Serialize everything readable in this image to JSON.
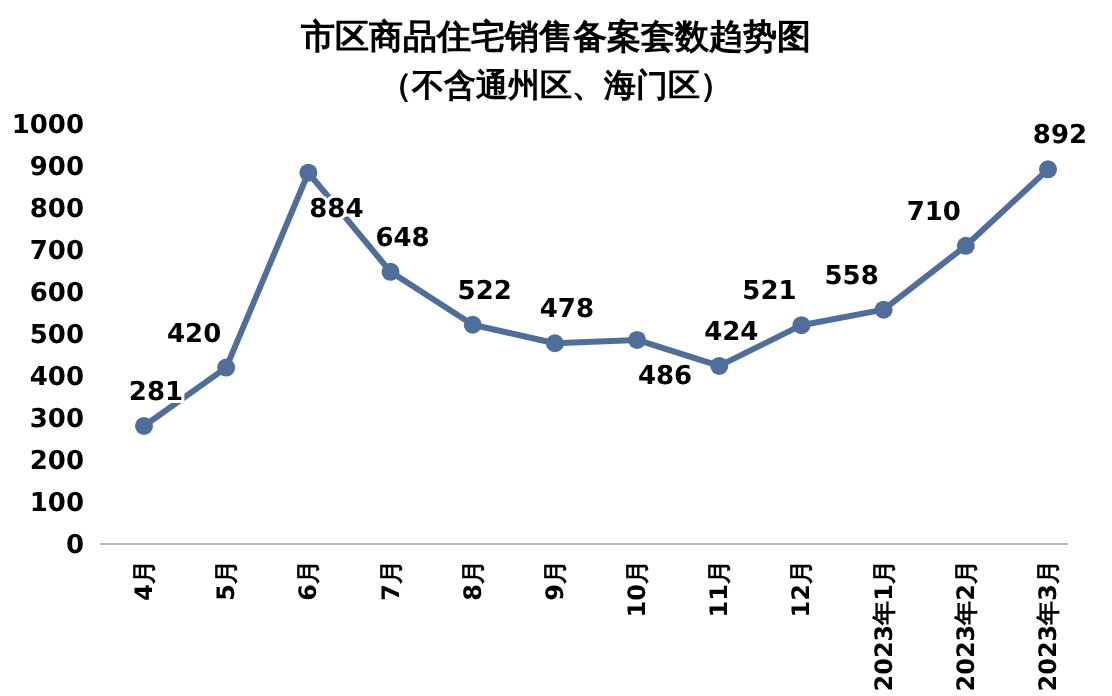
{
  "chart_data": {
    "type": "line",
    "title": "市区商品住宅销售备案套数趋势图",
    "subtitle": "（不含通州区、海门区）",
    "categories": [
      "4月",
      "5月",
      "6月",
      "7月",
      "8月",
      "9月",
      "10月",
      "11月",
      "12月",
      "2023年1月",
      "2023年2月",
      "2023年3月"
    ],
    "series": [
      {
        "color": "#4f6f9a",
        "values": [
          281,
          420,
          884,
          648,
          522,
          478,
          486,
          424,
          521,
          558,
          710,
          892
        ]
      }
    ],
    "ylim": [
      0,
      1000
    ],
    "yticks": [
      0,
      100,
      200,
      300,
      400,
      500,
      600,
      700,
      800,
      900,
      1000
    ],
    "data_labels": true,
    "marker": "circle",
    "line_style": "solid",
    "grid": false
  }
}
